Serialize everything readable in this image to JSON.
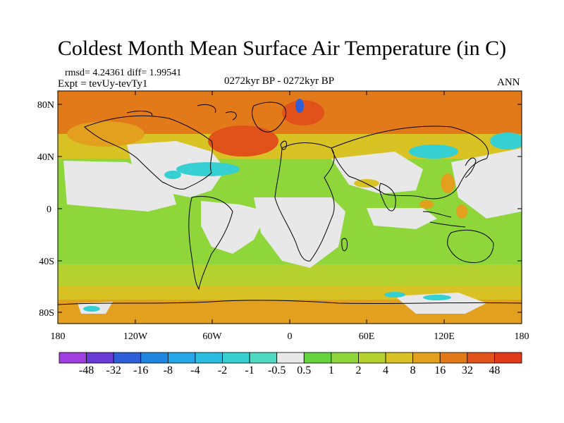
{
  "title": "Coldest Month Mean Surface Air Temperature (in C)",
  "stats": {
    "line1": "rmsd= 4.24361 diff= 1.99541",
    "line2": "Expt = tevUy-tevTy1"
  },
  "period": "0272kyr BP - 0272kyr BP",
  "season": "ANN",
  "axes": {
    "lat_labels": [
      "80N",
      "40N",
      "0",
      "40S",
      "80S"
    ],
    "lon_labels": [
      "180",
      "120W",
      "60W",
      "0",
      "60E",
      "120E",
      "180"
    ]
  },
  "colorbar": {
    "labels": [
      "-48",
      "-32",
      "-16",
      "-8",
      "-4",
      "-2",
      "-1",
      "-0.5",
      "0.5",
      "1",
      "2",
      "4",
      "8",
      "16",
      "32",
      "48"
    ],
    "colors": [
      "#a040e0",
      "#6a3ad8",
      "#2e5fd8",
      "#1f86e0",
      "#25a6e8",
      "#2bbde0",
      "#36cfd2",
      "#4fd9c0",
      "#e8e8e8",
      "#66d43c",
      "#8ed63a",
      "#b5d130",
      "#d8c224",
      "#e2a01e",
      "#e27a1a",
      "#e0521a",
      "#e03a18"
    ]
  },
  "map": {
    "band_colors": {
      "arctic_ocean": "#e27a1a",
      "north_pacific": "#d8c224",
      "tropics_ocean": "#b5d130",
      "southern_ocean": "#d8c224",
      "antarctic_band": "#e2a01e",
      "neutral_land": "#e8e8e8",
      "warm_land": "#8ed63a",
      "cool_patch": "#36cfd2"
    }
  }
}
